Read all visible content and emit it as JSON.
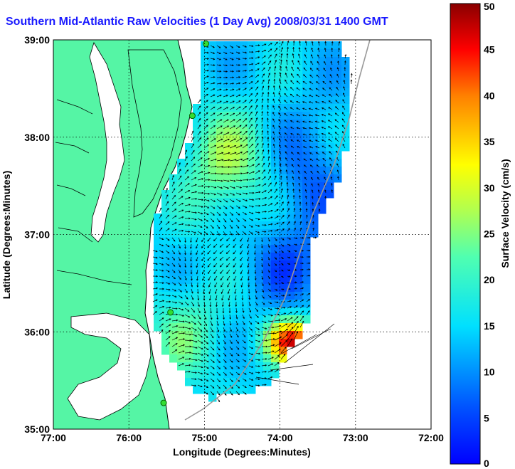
{
  "title": "Southern Mid-Atlantic Raw Velocities (1 Day Avg) 2008/03/31 1400 GMT",
  "chart_data": {
    "type": "heatmap",
    "xlabel": "Longitude (Degrees:Minutes)",
    "ylabel": "Latitude (Degrees:Minutes)",
    "x_ticks": [
      "77:00",
      "76:00",
      "75:00",
      "74:00",
      "73:00",
      "72:00"
    ],
    "y_ticks": [
      "39:00",
      "38:00",
      "37:00",
      "36:00",
      "35:00"
    ],
    "xlim": [
      -77,
      -72
    ],
    "ylim": [
      35,
      39
    ],
    "grid": true,
    "colorbar": {
      "label": "Surface Velocity (cm/s)",
      "ticks": [
        "50",
        "45",
        "40",
        "35",
        "30",
        "25",
        "20",
        "15",
        "10",
        "5",
        "0"
      ],
      "range": [
        0,
        50
      ],
      "colormap": "jet"
    },
    "land_color": "#55f5a5",
    "coastline_color": "#000000",
    "vector_color": "#000000",
    "stations": [
      {
        "lon": -74.98,
        "lat": 38.96
      },
      {
        "lon": -75.16,
        "lat": 38.22
      },
      {
        "lon": -75.45,
        "lat": 36.2
      },
      {
        "lon": -75.54,
        "lat": 35.27
      }
    ]
  }
}
